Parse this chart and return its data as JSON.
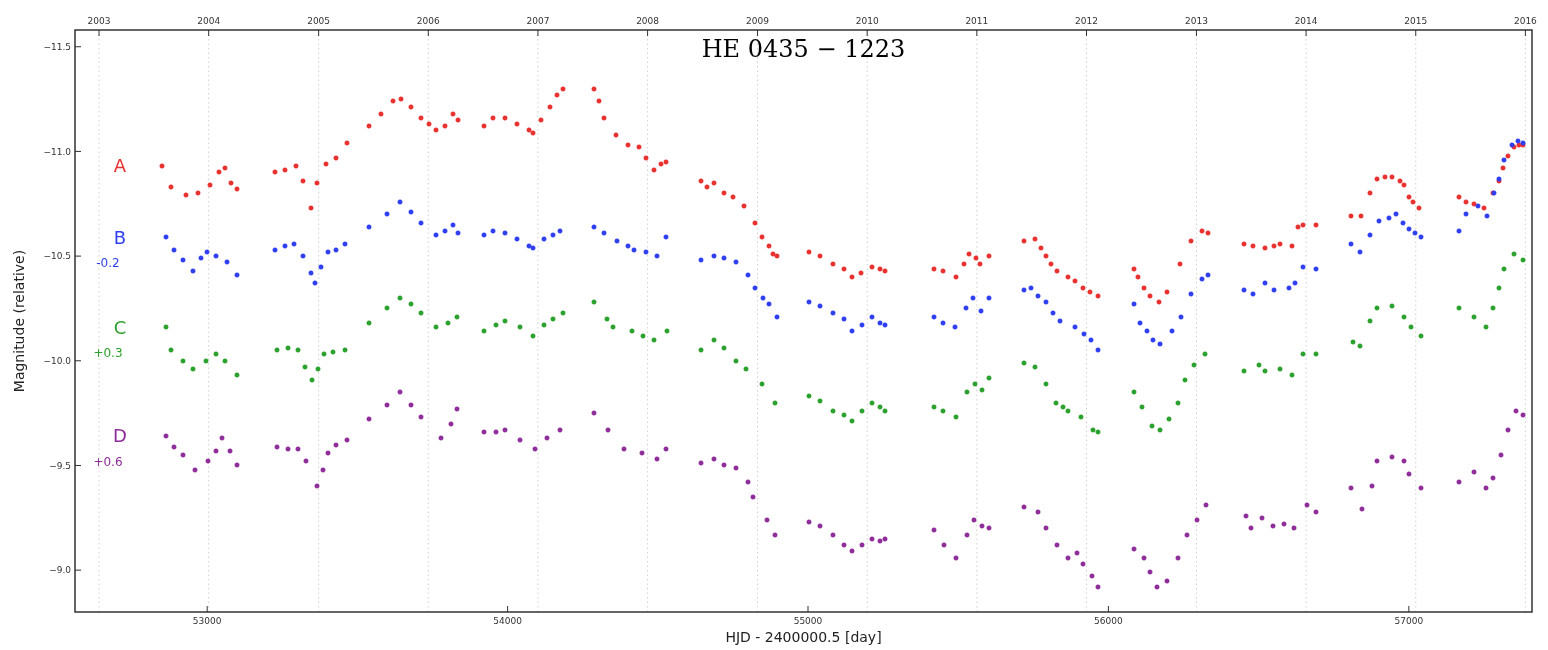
{
  "chart_data": {
    "type": "scatter",
    "title": "HE 0435 − 1223",
    "xlabel": "HJD - 2400000.5 [day]",
    "ylabel": "Magnitude (relative)",
    "xlim": [
      52560,
      57410
    ],
    "xticks": [
      53000,
      54000,
      55000,
      56000,
      57000
    ],
    "x2lim": [
      "2002-10-13",
      "2016-01-23"
    ],
    "x2ticks": [
      "2003",
      "2004",
      "2005",
      "2006",
      "2007",
      "2008",
      "2009",
      "2010",
      "2011",
      "2012",
      "2013",
      "2014",
      "2015",
      "2016"
    ],
    "ylim": [
      -8.8,
      -11.58
    ],
    "yticks": [
      {
        "value": -11.5,
        "label": "−11.5"
      },
      {
        "value": -11,
        "label": "−11.0"
      },
      {
        "value": -10.5,
        "label": "−10.5"
      },
      {
        "value": -10,
        "label": "−10.0"
      },
      {
        "value": -9.5,
        "label": "−9.5"
      },
      {
        "value": -9,
        "label": "−9.0"
      }
    ],
    "marker": "circle",
    "legend": false,
    "grid": false,
    "ref_lines": [
      {
        "axis": "x",
        "value": 52640,
        "color": "#d0d0d0",
        "line_style": "dotted"
      },
      {
        "axis": "x",
        "value": 53005,
        "color": "#d0d0d0",
        "line_style": "dotted"
      },
      {
        "axis": "x",
        "value": 53371,
        "color": "#d0d0d0",
        "line_style": "dotted"
      },
      {
        "axis": "x",
        "value": 53736,
        "color": "#d0d0d0",
        "line_style": "dotted"
      },
      {
        "axis": "x",
        "value": 54101,
        "color": "#d0d0d0",
        "line_style": "dotted"
      },
      {
        "axis": "x",
        "value": 54466,
        "color": "#d0d0d0",
        "line_style": "dotted"
      },
      {
        "axis": "x",
        "value": 54832,
        "color": "#d0d0d0",
        "line_style": "dotted"
      },
      {
        "axis": "x",
        "value": 55197,
        "color": "#d0d0d0",
        "line_style": "dotted"
      },
      {
        "axis": "x",
        "value": 55562,
        "color": "#d0d0d0",
        "line_style": "dotted"
      },
      {
        "axis": "x",
        "value": 55927,
        "color": "#d0d0d0",
        "line_style": "dotted"
      },
      {
        "axis": "x",
        "value": 56293,
        "color": "#d0d0d0",
        "line_style": "dotted"
      },
      {
        "axis": "x",
        "value": 56658,
        "color": "#d0d0d0",
        "line_style": "dotted"
      },
      {
        "axis": "x",
        "value": 57023,
        "color": "#d0d0d0",
        "line_style": "dotted"
      },
      {
        "axis": "x",
        "value": 57388,
        "color": "#d0d0d0",
        "line_style": "dotted"
      }
    ],
    "annotations": [
      "-0.2",
      "+0.3",
      "+0.6"
    ],
    "series": [
      {
        "name": "A",
        "color": "#e8312f",
        "x": [
          52850,
          52880,
          52930,
          52970,
          53010,
          53040,
          53060,
          53080,
          53100,
          53227,
          53260,
          53297,
          53320,
          53346,
          53365,
          53395,
          53430,
          53465,
          53540,
          53580,
          53620,
          53645,
          53680,
          53712,
          53740,
          53761,
          53790,
          53817,
          53834,
          53923,
          53950,
          53992,
          54030,
          54070,
          54084,
          54110,
          54140,
          54165,
          54183,
          54288,
          54305,
          54321,
          54360,
          54400,
          54437,
          54460,
          54489,
          54510,
          54526,
          54644,
          54665,
          54687,
          54720,
          54750,
          54786,
          54822,
          54848,
          54870,
          54885,
          54898,
          55003,
          55040,
          55082,
          55120,
          55145,
          55175,
          55214,
          55240,
          55257,
          55418,
          55450,
          55494,
          55520,
          55537,
          55560,
          55573,
          55603,
          55718,
          55754,
          55775,
          55791,
          55810,
          55830,
          55867,
          55890,
          55916,
          55940,
          55965,
          56084,
          56100,
          56120,
          56140,
          56170,
          56196,
          56239,
          56275,
          56311,
          56331,
          56450,
          56480,
          56522,
          56550,
          56572,
          56611,
          56630,
          56647,
          56690,
          56809,
          56840,
          56872,
          56895,
          56920,
          56944,
          56970,
          56984,
          57000,
          57015,
          57033,
          57168,
          57190,
          57217,
          57250,
          57280,
          57300,
          57315,
          57330,
          57350,
          57366,
          57380
        ],
        "values": [
          -10.93,
          -10.83,
          -10.79,
          -10.8,
          -10.84,
          -10.9,
          -10.92,
          -10.85,
          -10.82,
          -10.9,
          -10.91,
          -10.93,
          -10.86,
          -10.73,
          -10.85,
          -10.94,
          -10.97,
          -11.04,
          -11.12,
          -11.18,
          -11.24,
          -11.25,
          -11.21,
          -11.16,
          -11.13,
          -11.1,
          -11.12,
          -11.18,
          -11.15,
          -11.12,
          -11.16,
          -11.16,
          -11.13,
          -11.1,
          -11.09,
          -11.15,
          -11.21,
          -11.27,
          -11.3,
          -11.3,
          -11.24,
          -11.16,
          -11.08,
          -11.03,
          -11.02,
          -10.97,
          -10.91,
          -10.94,
          -10.95,
          -10.86,
          -10.83,
          -10.85,
          -10.8,
          -10.78,
          -10.74,
          -10.66,
          -10.59,
          -10.55,
          -10.51,
          -10.5,
          -10.52,
          -10.5,
          -10.46,
          -10.44,
          -10.4,
          -10.42,
          -10.45,
          -10.44,
          -10.43,
          -10.44,
          -10.43,
          -10.4,
          -10.46,
          -10.51,
          -10.49,
          -10.46,
          -10.5,
          -10.57,
          -10.58,
          -10.54,
          -10.5,
          -10.46,
          -10.43,
          -10.4,
          -10.38,
          -10.35,
          -10.33,
          -10.31,
          -10.44,
          -10.4,
          -10.35,
          -10.31,
          -10.28,
          -10.33,
          -10.46,
          -10.57,
          -10.62,
          -10.61,
          -10.56,
          -10.55,
          -10.54,
          -10.55,
          -10.56,
          -10.55,
          -10.64,
          -10.65,
          -10.65,
          -10.69,
          -10.69,
          -10.8,
          -10.87,
          -10.88,
          -10.88,
          -10.86,
          -10.84,
          -10.78,
          -10.76,
          -10.73,
          -10.78,
          -10.76,
          -10.75,
          -10.73,
          -10.8,
          -10.86,
          -10.92,
          -10.98,
          -11.02,
          -11.03,
          -11.03
        ]
      },
      {
        "name": "B",
        "color": "#2f3ff0",
        "x": [
          52862,
          52890,
          52918,
          52954,
          52980,
          53000,
          53030,
          53066,
          53099,
          53227,
          53260,
          53290,
          53320,
          53345,
          53359,
          53380,
          53402,
          53430,
          53458,
          53537,
          53600,
          53642,
          53680,
          53712,
          53761,
          53790,
          53817,
          53834,
          53923,
          53950,
          53992,
          54030,
          54070,
          54084,
          54120,
          54150,
          54175,
          54288,
          54320,
          54364,
          54400,
          54420,
          54460,
          54499,
          54526,
          54644,
          54687,
          54720,
          54760,
          54800,
          54822,
          54850,
          54870,
          54898,
          55003,
          55040,
          55082,
          55120,
          55145,
          55180,
          55214,
          55240,
          55257,
          55418,
          55450,
          55490,
          55525,
          55550,
          55575,
          55603,
          55718,
          55741,
          55765,
          55791,
          55815,
          55840,
          55890,
          55920,
          55942,
          55965,
          56084,
          56105,
          56130,
          56150,
          56173,
          56210,
          56243,
          56275,
          56311,
          56331,
          56450,
          56480,
          56520,
          56550,
          56600,
          56620,
          56647,
          56690,
          56809,
          56838,
          56872,
          56900,
          56935,
          56958,
          56980,
          57000,
          57020,
          57040,
          57168,
          57190,
          57230,
          57260,
          57285,
          57300,
          57318,
          57345,
          57365,
          57380
        ],
        "values": [
          -10.59,
          -10.53,
          -10.48,
          -10.43,
          -10.49,
          -10.52,
          -10.5,
          -10.47,
          -10.41,
          -10.53,
          -10.55,
          -10.56,
          -10.5,
          -10.42,
          -10.37,
          -10.45,
          -10.52,
          -10.53,
          -10.56,
          -10.64,
          -10.7,
          -10.76,
          -10.71,
          -10.66,
          -10.6,
          -10.62,
          -10.65,
          -10.61,
          -10.6,
          -10.62,
          -10.61,
          -10.58,
          -10.55,
          -10.54,
          -10.58,
          -10.6,
          -10.62,
          -10.64,
          -10.61,
          -10.57,
          -10.55,
          -10.53,
          -10.52,
          -10.5,
          -10.59,
          -10.48,
          -10.5,
          -10.49,
          -10.47,
          -10.41,
          -10.35,
          -10.3,
          -10.27,
          -10.21,
          -10.28,
          -10.26,
          -10.23,
          -10.2,
          -10.14,
          -10.17,
          -10.21,
          -10.18,
          -10.17,
          -10.21,
          -10.18,
          -10.16,
          -10.25,
          -10.3,
          -10.24,
          -10.3,
          -10.34,
          -10.35,
          -10.31,
          -10.28,
          -10.23,
          -10.19,
          -10.16,
          -10.13,
          -10.1,
          -10.05,
          -10.27,
          -10.18,
          -10.14,
          -10.1,
          -10.08,
          -10.14,
          -10.21,
          -10.32,
          -10.39,
          -10.41,
          -10.34,
          -10.32,
          -10.37,
          -10.34,
          -10.35,
          -10.37,
          -10.45,
          -10.44,
          -10.56,
          -10.52,
          -10.6,
          -10.67,
          -10.68,
          -10.7,
          -10.66,
          -10.63,
          -10.61,
          -10.59,
          -10.62,
          -10.7,
          -10.74,
          -10.69,
          -10.8,
          -10.87,
          -10.96,
          -11.03,
          -11.05,
          -11.04
        ]
      },
      {
        "name": "C",
        "color": "#2ca02c",
        "x": [
          52862,
          52880,
          52918,
          52954,
          52995,
          53030,
          53060,
          53099,
          53234,
          53270,
          53303,
          53325,
          53350,
          53370,
          53388,
          53420,
          53458,
          53537,
          53600,
          53642,
          53680,
          53712,
          53761,
          53800,
          53830,
          53923,
          53960,
          53992,
          54040,
          54084,
          54120,
          54150,
          54183,
          54288,
          54330,
          54350,
          54413,
          54450,
          54489,
          54529,
          54644,
          54687,
          54720,
          54760,
          54795,
          54848,
          54890,
          55003,
          55040,
          55082,
          55120,
          55145,
          55180,
          55214,
          55240,
          55257,
          55418,
          55450,
          55494,
          55530,
          55555,
          55580,
          55603,
          55718,
          55754,
          55791,
          55824,
          55850,
          55867,
          55910,
          55950,
          55965,
          56084,
          56113,
          56146,
          56173,
          56203,
          56230,
          56256,
          56285,
          56320,
          56450,
          56500,
          56522,
          56572,
          56611,
          56647,
          56690,
          56815,
          56838,
          56872,
          56895,
          56944,
          56984,
          57007,
          57040,
          57168,
          57217,
          57257,
          57280,
          57300,
          57316,
          57350,
          57380
        ],
        "values": [
          -10.16,
          -10.05,
          -10.0,
          -9.96,
          -10.0,
          -10.03,
          -10.0,
          -9.93,
          -10.05,
          -10.06,
          -10.05,
          -9.97,
          -9.91,
          -9.96,
          -10.03,
          -10.04,
          -10.05,
          -10.18,
          -10.25,
          -10.3,
          -10.27,
          -10.23,
          -10.16,
          -10.18,
          -10.21,
          -10.14,
          -10.17,
          -10.19,
          -10.16,
          -10.12,
          -10.17,
          -10.2,
          -10.23,
          -10.28,
          -10.2,
          -10.16,
          -10.14,
          -10.12,
          -10.1,
          -10.14,
          -10.05,
          -10.1,
          -10.06,
          -10.0,
          -9.96,
          -9.89,
          -9.8,
          -9.83,
          -9.81,
          -9.76,
          -9.74,
          -9.71,
          -9.76,
          -9.8,
          -9.78,
          -9.76,
          -9.78,
          -9.76,
          -9.73,
          -9.85,
          -9.89,
          -9.86,
          -9.92,
          -9.99,
          -9.97,
          -9.89,
          -9.8,
          -9.78,
          -9.76,
          -9.73,
          -9.67,
          -9.66,
          -9.85,
          -9.78,
          -9.69,
          -9.67,
          -9.72,
          -9.8,
          -9.91,
          -9.98,
          -10.03,
          -9.95,
          -9.98,
          -9.95,
          -9.96,
          -9.93,
          -10.03,
          -10.03,
          -10.09,
          -10.07,
          -10.19,
          -10.25,
          -10.26,
          -10.21,
          -10.16,
          -10.12,
          -10.25,
          -10.21,
          -10.16,
          -10.25,
          -10.35,
          -10.44,
          -10.51,
          -10.48
        ]
      },
      {
        "name": "D",
        "color": "#8e2c9a",
        "x": [
          52862,
          52890,
          52918,
          52960,
          53003,
          53030,
          53049,
          53075,
          53099,
          53234,
          53270,
          53303,
          53330,
          53365,
          53385,
          53402,
          53430,
          53465,
          53537,
          53600,
          53642,
          53680,
          53712,
          53778,
          53810,
          53830,
          53923,
          53960,
          53992,
          54040,
          54090,
          54130,
          54175,
          54288,
          54334,
          54387,
          54449,
          54499,
          54526,
          54644,
          54687,
          54720,
          54760,
          54800,
          54816,
          54862,
          54890,
          55003,
          55040,
          55082,
          55120,
          55145,
          55180,
          55214,
          55240,
          55257,
          55418,
          55454,
          55494,
          55530,
          55553,
          55580,
          55603,
          55718,
          55767,
          55791,
          55830,
          55867,
          55895,
          55916,
          55945,
          55965,
          56084,
          56120,
          56140,
          56163,
          56196,
          56233,
          56262,
          56295,
          56325,
          56457,
          56473,
          56512,
          56549,
          56585,
          56618,
          56661,
          56690,
          56809,
          56845,
          56878,
          56895,
          56944,
          56984,
          57000,
          57040,
          57168,
          57217,
          57257,
          57280,
          57306,
          57330,
          57356,
          57380
        ],
        "values": [
          -9.64,
          -9.59,
          -9.55,
          -9.48,
          -9.52,
          -9.57,
          -9.63,
          -9.57,
          -9.5,
          -9.59,
          -9.58,
          -9.58,
          -9.52,
          -9.4,
          -9.48,
          -9.56,
          -9.6,
          -9.62,
          -9.72,
          -9.79,
          -9.85,
          -9.79,
          -9.73,
          -9.63,
          -9.7,
          -9.77,
          -9.66,
          -9.66,
          -9.67,
          -9.62,
          -9.58,
          -9.63,
          -9.67,
          -9.75,
          -9.67,
          -9.58,
          -9.56,
          -9.53,
          -9.58,
          -9.51,
          -9.53,
          -9.5,
          -9.49,
          -9.42,
          -9.35,
          -9.24,
          -9.17,
          -9.23,
          -9.21,
          -9.17,
          -9.12,
          -9.09,
          -9.12,
          -9.15,
          -9.14,
          -9.15,
          -9.19,
          -9.12,
          -9.06,
          -9.17,
          -9.24,
          -9.21,
          -9.2,
          -9.3,
          -9.28,
          -9.2,
          -9.12,
          -9.06,
          -9.08,
          -9.03,
          -8.97,
          -8.92,
          -9.1,
          -9.06,
          -8.99,
          -8.92,
          -8.95,
          -9.06,
          -9.17,
          -9.24,
          -9.31,
          -9.26,
          -9.2,
          -9.25,
          -9.21,
          -9.22,
          -9.2,
          -9.31,
          -9.28,
          -9.39,
          -9.29,
          -9.4,
          -9.52,
          -9.54,
          -9.52,
          -9.46,
          -9.39,
          -9.42,
          -9.47,
          -9.39,
          -9.44,
          -9.55,
          -9.67,
          -9.76,
          -9.74
        ]
      }
    ]
  }
}
